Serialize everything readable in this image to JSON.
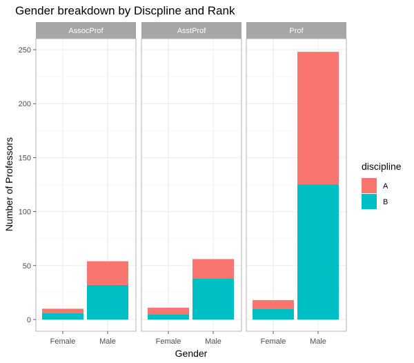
{
  "chart_data": {
    "type": "bar",
    "stacked": true,
    "faceted": true,
    "title": "Gender breakdown by Discpline and Rank",
    "xlabel": "Gender",
    "ylabel": "Number of Professors",
    "ylim": [
      0,
      258
    ],
    "y_ticks": [
      0,
      50,
      100,
      150,
      200,
      250
    ],
    "categories": [
      "Female",
      "Male"
    ],
    "grid": true,
    "legend": {
      "title": "discipline",
      "position": "right",
      "entries": [
        {
          "label": "A",
          "color": "#F8766D"
        },
        {
          "label": "B",
          "color": "#00BFC4"
        }
      ]
    },
    "panels": [
      {
        "strip": "AssocProf",
        "series": [
          {
            "name": "A",
            "values": [
              4,
              22
            ]
          },
          {
            "name": "B",
            "values": [
              6,
              32
            ]
          }
        ]
      },
      {
        "strip": "AsstProf",
        "series": [
          {
            "name": "A",
            "values": [
              6,
              18
            ]
          },
          {
            "name": "B",
            "values": [
              5,
              38
            ]
          }
        ]
      },
      {
        "strip": "Prof",
        "series": [
          {
            "name": "A",
            "values": [
              8,
              123
            ]
          },
          {
            "name": "B",
            "values": [
              10,
              125
            ]
          }
        ]
      }
    ],
    "colors": {
      "A": "#F8766D",
      "B": "#00BFC4",
      "strip_bg": "#a6a6a6"
    }
  }
}
